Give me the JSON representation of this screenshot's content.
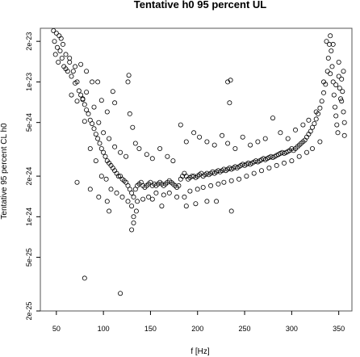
{
  "chart_data": {
    "type": "scatter",
    "title": "Tentative h0 95 percent UL",
    "xlabel": "f [Hz]",
    "ylabel": "Tentative 95 percent CL h0",
    "xlim": [
      33,
      364
    ],
    "ylim": [
      2e-25,
      2.5e-23
    ],
    "yscale": "log",
    "grid": false,
    "xticks": [
      50,
      100,
      150,
      200,
      250,
      300,
      350
    ],
    "xtick_labels": [
      "50",
      "100",
      "150",
      "200",
      "250",
      "300",
      "350"
    ],
    "yticks": [
      2e-25,
      5e-25,
      1e-24,
      2e-24,
      5e-24,
      1e-23,
      2e-23
    ],
    "ytick_labels": [
      "2e-25",
      "5e-25",
      "1e-24",
      "2e-24",
      "5e-24",
      "1e-23",
      "2e-23"
    ],
    "marker": "open-circle",
    "series": [
      {
        "points": [
          [
            47,
            2.4e-23
          ],
          [
            48,
            2e-23
          ],
          [
            49,
            1.6e-23
          ],
          [
            50,
            2.3e-23
          ],
          [
            51,
            1.8e-23
          ],
          [
            52,
            1.4e-23
          ],
          [
            53,
            2.2e-23
          ],
          [
            54,
            1.7e-23
          ],
          [
            55,
            2.1e-23
          ],
          [
            56,
            1.5e-23
          ],
          [
            57,
            1.9e-23
          ],
          [
            58,
            1.3e-23
          ],
          [
            60,
            1.6e-23
          ],
          [
            62,
            1.2e-23
          ],
          [
            64,
            1.4e-23
          ],
          [
            66,
            1.1e-23
          ],
          [
            68,
            1.2e-23
          ],
          [
            70,
            9.8e-24
          ],
          [
            72,
            1e-23
          ],
          [
            74,
            8.6e-24
          ],
          [
            76,
            8e-24
          ],
          [
            78,
            7.5e-24
          ],
          [
            80,
            6.8e-24
          ],
          [
            82,
            6.2e-24
          ],
          [
            84,
            5.8e-24
          ],
          [
            86,
            5.2e-24
          ],
          [
            88,
            4.9e-24
          ],
          [
            90,
            4.5e-24
          ],
          [
            92,
            4.1e-24
          ],
          [
            94,
            3.8e-24
          ],
          [
            96,
            3.5e-24
          ],
          [
            98,
            3.2e-24
          ],
          [
            100,
            3e-24
          ],
          [
            102,
            2.8e-24
          ],
          [
            104,
            2.6e-24
          ],
          [
            106,
            2.5e-24
          ],
          [
            108,
            2.4e-24
          ],
          [
            110,
            2.3e-24
          ],
          [
            112,
            2.2e-24
          ],
          [
            114,
            2.1e-24
          ],
          [
            116,
            2e-24
          ],
          [
            118,
            2e-24
          ],
          [
            120,
            1.9e-24
          ],
          [
            122,
            1.85e-24
          ],
          [
            124,
            1.8e-24
          ],
          [
            126,
            1.7e-24
          ],
          [
            128,
            1.6e-24
          ],
          [
            130,
            1.5e-24
          ],
          [
            132,
            1.4e-24
          ],
          [
            134,
            1.6e-24
          ],
          [
            136,
            1.7e-24
          ],
          [
            138,
            1.75e-24
          ],
          [
            140,
            1.8e-24
          ],
          [
            142,
            1.7e-24
          ],
          [
            144,
            1.65e-24
          ],
          [
            146,
            1.7e-24
          ],
          [
            148,
            1.75e-24
          ],
          [
            150,
            1.8e-24
          ],
          [
            152,
            1.7e-24
          ],
          [
            154,
            1.75e-24
          ],
          [
            156,
            1.7e-24
          ],
          [
            158,
            1.75e-24
          ],
          [
            160,
            1.8e-24
          ],
          [
            162,
            1.75e-24
          ],
          [
            164,
            1.7e-24
          ],
          [
            166,
            1.75e-24
          ],
          [
            168,
            1.8e-24
          ],
          [
            170,
            1.85e-24
          ],
          [
            172,
            1.8e-24
          ],
          [
            174,
            1.75e-24
          ],
          [
            176,
            1.7e-24
          ],
          [
            178,
            1.65e-24
          ],
          [
            180,
            1.7e-24
          ],
          [
            182,
            1.9e-24
          ],
          [
            184,
            2e-24
          ],
          [
            186,
            2.1e-24
          ],
          [
            188,
            2e-24
          ],
          [
            190,
            1.9e-24
          ],
          [
            192,
            1.95e-24
          ],
          [
            194,
            2e-24
          ],
          [
            196,
            2e-24
          ],
          [
            198,
            1.95e-24
          ],
          [
            200,
            2e-24
          ],
          [
            202,
            2.05e-24
          ],
          [
            204,
            2.1e-24
          ],
          [
            206,
            2e-24
          ],
          [
            208,
            2.05e-24
          ],
          [
            210,
            2.1e-24
          ],
          [
            212,
            2.05e-24
          ],
          [
            214,
            2.1e-24
          ],
          [
            216,
            2.15e-24
          ],
          [
            218,
            2.1e-24
          ],
          [
            220,
            2.15e-24
          ],
          [
            222,
            2.2e-24
          ],
          [
            224,
            2.15e-24
          ],
          [
            226,
            2.2e-24
          ],
          [
            228,
            2.25e-24
          ],
          [
            230,
            2.2e-24
          ],
          [
            232,
            2.25e-24
          ],
          [
            234,
            2.3e-24
          ],
          [
            236,
            2.25e-24
          ],
          [
            238,
            2.3e-24
          ],
          [
            240,
            2.35e-24
          ],
          [
            242,
            2.3e-24
          ],
          [
            244,
            2.35e-24
          ],
          [
            246,
            2.4e-24
          ],
          [
            248,
            2.45e-24
          ],
          [
            250,
            2.4e-24
          ],
          [
            252,
            2.45e-24
          ],
          [
            254,
            2.5e-24
          ],
          [
            256,
            2.45e-24
          ],
          [
            258,
            2.5e-24
          ],
          [
            260,
            2.55e-24
          ],
          [
            262,
            2.6e-24
          ],
          [
            264,
            2.55e-24
          ],
          [
            266,
            2.6e-24
          ],
          [
            268,
            2.65e-24
          ],
          [
            270,
            2.7e-24
          ],
          [
            272,
            2.65e-24
          ],
          [
            274,
            2.7e-24
          ],
          [
            276,
            2.75e-24
          ],
          [
            278,
            2.8e-24
          ],
          [
            280,
            2.75e-24
          ],
          [
            282,
            2.8e-24
          ],
          [
            284,
            2.85e-24
          ],
          [
            286,
            2.9e-24
          ],
          [
            288,
            2.95e-24
          ],
          [
            290,
            3e-24
          ],
          [
            292,
            2.95e-24
          ],
          [
            294,
            3e-24
          ],
          [
            296,
            3.05e-24
          ],
          [
            298,
            3.1e-24
          ],
          [
            300,
            3.2e-24
          ],
          [
            302,
            3.1e-24
          ],
          [
            304,
            3.2e-24
          ],
          [
            306,
            3.3e-24
          ],
          [
            308,
            3.4e-24
          ],
          [
            310,
            3.5e-24
          ],
          [
            312,
            3.6e-24
          ],
          [
            314,
            3.7e-24
          ],
          [
            316,
            3.9e-24
          ],
          [
            318,
            4.1e-24
          ],
          [
            320,
            4.3e-24
          ],
          [
            322,
            4.6e-24
          ],
          [
            324,
            4.9e-24
          ],
          [
            326,
            5.3e-24
          ],
          [
            328,
            5.8e-24
          ],
          [
            330,
            6.4e-24
          ],
          [
            332,
            7.2e-24
          ],
          [
            334,
            8.3e-24
          ],
          [
            336,
            9.6e-24
          ],
          [
            338,
            1.2e-23
          ],
          [
            339,
            1.5e-23
          ],
          [
            340,
            1.9e-23
          ],
          [
            341,
            2.2e-23
          ],
          [
            342,
            1.7e-23
          ],
          [
            343,
            1.3e-23
          ],
          [
            344,
            1e-23
          ],
          [
            345,
            8e-24
          ],
          [
            346,
            6.5e-24
          ],
          [
            347,
            5.6e-24
          ],
          [
            348,
            4.8e-24
          ],
          [
            349,
            4.2e-24
          ],
          [
            350,
            1.1e-23
          ],
          [
            351,
            9e-24
          ],
          [
            352,
            7.5e-24
          ],
          [
            353,
            1.05e-23
          ],
          [
            354,
            8.5e-24
          ],
          [
            355,
            6e-24
          ],
          [
            356,
            4e-24
          ],
          [
            60,
            1.25e-23
          ],
          [
            64,
            1.5e-23
          ],
          [
            66,
            8e-24
          ],
          [
            70,
            1.3e-23
          ],
          [
            72,
            7.2e-24
          ],
          [
            76,
            1.35e-23
          ],
          [
            80,
            5.1e-24
          ],
          [
            82,
            1.2e-23
          ],
          [
            86,
            3.2e-24
          ],
          [
            90,
            6.5e-24
          ],
          [
            92,
            2.6e-24
          ],
          [
            95,
            5e-24
          ],
          [
            98,
            2e-24
          ],
          [
            100,
            4.2e-24
          ],
          [
            103,
            1.9e-24
          ],
          [
            106,
            3.8e-24
          ],
          [
            108,
            1.6e-24
          ],
          [
            112,
            3.3e-24
          ],
          [
            114,
            1.5e-24
          ],
          [
            118,
            3e-24
          ],
          [
            120,
            1.4e-24
          ],
          [
            124,
            2.8e-24
          ],
          [
            126,
            1.3e-24
          ],
          [
            128,
            5.8e-24
          ],
          [
            130,
            1.2e-24
          ],
          [
            131,
            4.6e-24
          ],
          [
            132,
            1e-24
          ],
          [
            134,
            3.5e-24
          ],
          [
            136,
            1.3e-24
          ],
          [
            138,
            3.2e-24
          ],
          [
            142,
            1.35e-24
          ],
          [
            146,
            2.9e-24
          ],
          [
            148,
            1.4e-24
          ],
          [
            152,
            2.7e-24
          ],
          [
            156,
            1.5e-24
          ],
          [
            160,
            3.2e-24
          ],
          [
            164,
            1.45e-24
          ],
          [
            168,
            2.8e-24
          ],
          [
            170,
            1.5e-24
          ],
          [
            174,
            2.6e-24
          ],
          [
            178,
            1.4e-24
          ],
          [
            182,
            4.8e-24
          ],
          [
            186,
            1.4e-24
          ],
          [
            188,
            3.6e-24
          ],
          [
            192,
            1.55e-24
          ],
          [
            196,
            4.2e-24
          ],
          [
            200,
            1.6e-24
          ],
          [
            202,
            3.9e-24
          ],
          [
            206,
            1.65e-24
          ],
          [
            210,
            3.6e-24
          ],
          [
            214,
            1.7e-24
          ],
          [
            218,
            3.4e-24
          ],
          [
            222,
            1.75e-24
          ],
          [
            226,
            4e-24
          ],
          [
            228,
            1.8e-24
          ],
          [
            232,
            3.5e-24
          ],
          [
            236,
            1.85e-24
          ],
          [
            240,
            3.2e-24
          ],
          [
            244,
            1.9e-24
          ],
          [
            248,
            3.9e-24
          ],
          [
            252,
            2e-24
          ],
          [
            256,
            3.4e-24
          ],
          [
            260,
            2.1e-24
          ],
          [
            264,
            3.6e-24
          ],
          [
            268,
            2.2e-24
          ],
          [
            272,
            3.8e-24
          ],
          [
            276,
            2.3e-24
          ],
          [
            280,
            5.4e-24
          ],
          [
            284,
            2.4e-24
          ],
          [
            288,
            4.2e-24
          ],
          [
            292,
            2.5e-24
          ],
          [
            296,
            3.8e-24
          ],
          [
            300,
            2.6e-24
          ],
          [
            304,
            4.4e-24
          ],
          [
            308,
            2.8e-24
          ],
          [
            312,
            4.8e-24
          ],
          [
            316,
            3e-24
          ],
          [
            318,
            5.2e-24
          ],
          [
            322,
            3.2e-24
          ],
          [
            326,
            6e-24
          ],
          [
            330,
            3.6e-24
          ],
          [
            334,
            1e-23
          ],
          [
            337,
            2e-23
          ],
          [
            341,
            1.15e-23
          ],
          [
            344,
            1.9e-23
          ],
          [
            347,
            9.5e-24
          ],
          [
            350,
            1.4e-23
          ],
          [
            353,
            7.2e-24
          ],
          [
            355,
            1.2e-23
          ],
          [
            356,
            5e-24
          ],
          [
            72,
            1.8e-24
          ],
          [
            80,
            3.5e-25
          ],
          [
            86,
            1.6e-24
          ],
          [
            95,
            1.4e-24
          ],
          [
            104,
            1.3e-24
          ],
          [
            106,
            1.1e-24
          ],
          [
            118,
            2.7e-25
          ],
          [
            130,
            8e-25
          ],
          [
            132,
            9e-25
          ],
          [
            135,
            1.1e-24
          ],
          [
            152,
            1.35e-24
          ],
          [
            162,
            1.2e-24
          ],
          [
            188,
            1.2e-24
          ],
          [
            198,
            1.25e-24
          ],
          [
            210,
            1.3e-24
          ],
          [
            220,
            1.3e-24
          ],
          [
            236,
            1.1e-24
          ],
          [
            126,
            1e-23
          ],
          [
            127,
            1.12e-23
          ],
          [
            232,
            1e-23
          ],
          [
            235,
            1.03e-23
          ],
          [
            234,
            7e-24
          ],
          [
            78,
            7.4e-24
          ],
          [
            82,
            8.4e-24
          ],
          [
            88,
            1e-23
          ],
          [
            94,
            1e-23
          ],
          [
            110,
            8.5e-24
          ],
          [
            112,
            7e-24
          ],
          [
            104,
            6e-24
          ],
          [
            98,
            7.3e-24
          ]
        ]
      }
    ]
  }
}
